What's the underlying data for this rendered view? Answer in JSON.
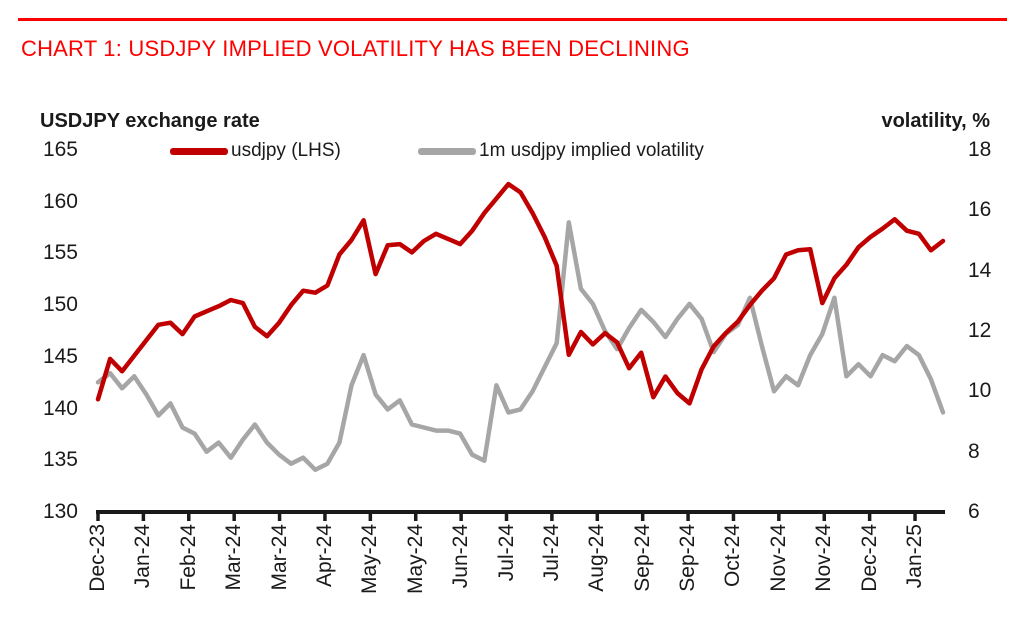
{
  "colors": {
    "title": "#fe0000",
    "axis": "#1a1a1a",
    "text": "#1a1a1a",
    "usdjpy_line": "#c00000",
    "vol_line": "#a6a6a6"
  },
  "chart_data": {
    "type": "line",
    "title": "CHART 1: USDJPY IMPLIED VOLATILITY HAS BEEN DECLINING",
    "legend_position": "top",
    "grid": false,
    "x_tick_labels": [
      "Dec-23",
      "Jan-24",
      "Feb-24",
      "Mar-24",
      "Mar-24",
      "Apr-24",
      "May-24",
      "May-24",
      "Jun-24",
      "Jul-24",
      "Jul-24",
      "Aug-24",
      "Sep-24",
      "Sep-24",
      "Oct-24",
      "Nov-24",
      "Nov-24",
      "Dec-24",
      "Jan-25"
    ],
    "left_axis": {
      "title": "USDJPY exchange rate",
      "min": 130,
      "max": 165,
      "ticks": [
        165,
        160,
        155,
        150,
        145,
        140,
        135,
        130
      ]
    },
    "right_axis": {
      "title": "volatility, %",
      "min": 6,
      "max": 18,
      "ticks": [
        18,
        16,
        14,
        12,
        10,
        8,
        6
      ]
    },
    "series": [
      {
        "name": "usdjpy (LHS)",
        "axis": "left",
        "color": "#c00000",
        "values": [
          140.9,
          144.8,
          143.6,
          145.1,
          146.6,
          148.1,
          148.3,
          147.2,
          148.9,
          149.4,
          149.9,
          150.5,
          150.2,
          147.9,
          147.0,
          148.3,
          150.0,
          151.4,
          151.2,
          151.9,
          154.9,
          156.3,
          158.2,
          153.0,
          155.8,
          155.9,
          155.1,
          156.2,
          156.9,
          156.4,
          155.9,
          157.2,
          158.9,
          160.3,
          161.7,
          160.9,
          158.9,
          156.6,
          153.8,
          145.2,
          147.4,
          146.2,
          147.3,
          146.4,
          143.9,
          145.4,
          141.1,
          143.1,
          141.5,
          140.5,
          143.8,
          146.0,
          147.3,
          148.4,
          150.0,
          151.4,
          152.6,
          154.9,
          155.3,
          155.4,
          150.2,
          152.6,
          153.9,
          155.6,
          156.6,
          157.4,
          158.3,
          157.2,
          156.9,
          155.3,
          156.2
        ]
      },
      {
        "name": "1m usdjpy implied volatility",
        "axis": "right",
        "color": "#a6a6a6",
        "values": [
          10.3,
          10.6,
          10.1,
          10.5,
          9.9,
          9.2,
          9.6,
          8.8,
          8.6,
          8.0,
          8.3,
          7.8,
          8.4,
          8.9,
          8.3,
          7.9,
          7.6,
          7.8,
          7.4,
          7.6,
          8.3,
          10.2,
          11.2,
          9.9,
          9.4,
          9.7,
          8.9,
          8.8,
          8.7,
          8.7,
          8.6,
          7.9,
          7.7,
          10.2,
          9.3,
          9.4,
          10.0,
          10.8,
          11.6,
          15.6,
          13.4,
          12.9,
          12.0,
          11.4,
          12.1,
          12.7,
          12.3,
          11.8,
          12.4,
          12.9,
          12.4,
          11.3,
          11.9,
          12.2,
          13.1,
          11.5,
          10.0,
          10.5,
          10.2,
          11.2,
          11.9,
          13.1,
          10.5,
          10.9,
          10.5,
          11.2,
          11.0,
          11.5,
          11.2,
          10.4,
          9.3
        ]
      }
    ]
  }
}
